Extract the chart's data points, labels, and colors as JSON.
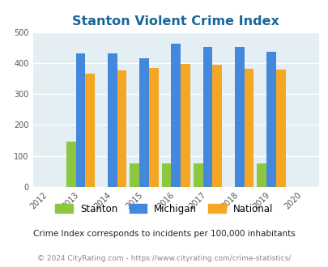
{
  "title": "Stanton Violent Crime Index",
  "years": [
    2012,
    2013,
    2014,
    2015,
    2016,
    2017,
    2018,
    2019,
    2020
  ],
  "bar_years": [
    2013,
    2014,
    2015,
    2016,
    2017,
    2018,
    2019
  ],
  "stanton": [
    145,
    0,
    75,
    75,
    75,
    0,
    75
  ],
  "michigan": [
    432,
    430,
    415,
    462,
    451,
    451,
    437
  ],
  "national": [
    367,
    376,
    383,
    397,
    394,
    381,
    380
  ],
  "stanton_color": "#8dc63f",
  "michigan_color": "#4488dd",
  "national_color": "#f5a623",
  "bg_color": "#e4eff4",
  "ylim": [
    0,
    500
  ],
  "yticks": [
    0,
    100,
    200,
    300,
    400,
    500
  ],
  "grid_color": "#ffffff",
  "title_color": "#1a6699",
  "title_fontsize": 11.5,
  "legend_labels": [
    "Stanton",
    "Michigan",
    "National"
  ],
  "footnote1": "Crime Index corresponds to incidents per 100,000 inhabitants",
  "footnote2": "© 2024 CityRating.com - https://www.cityrating.com/crime-statistics/",
  "bar_width": 0.3
}
